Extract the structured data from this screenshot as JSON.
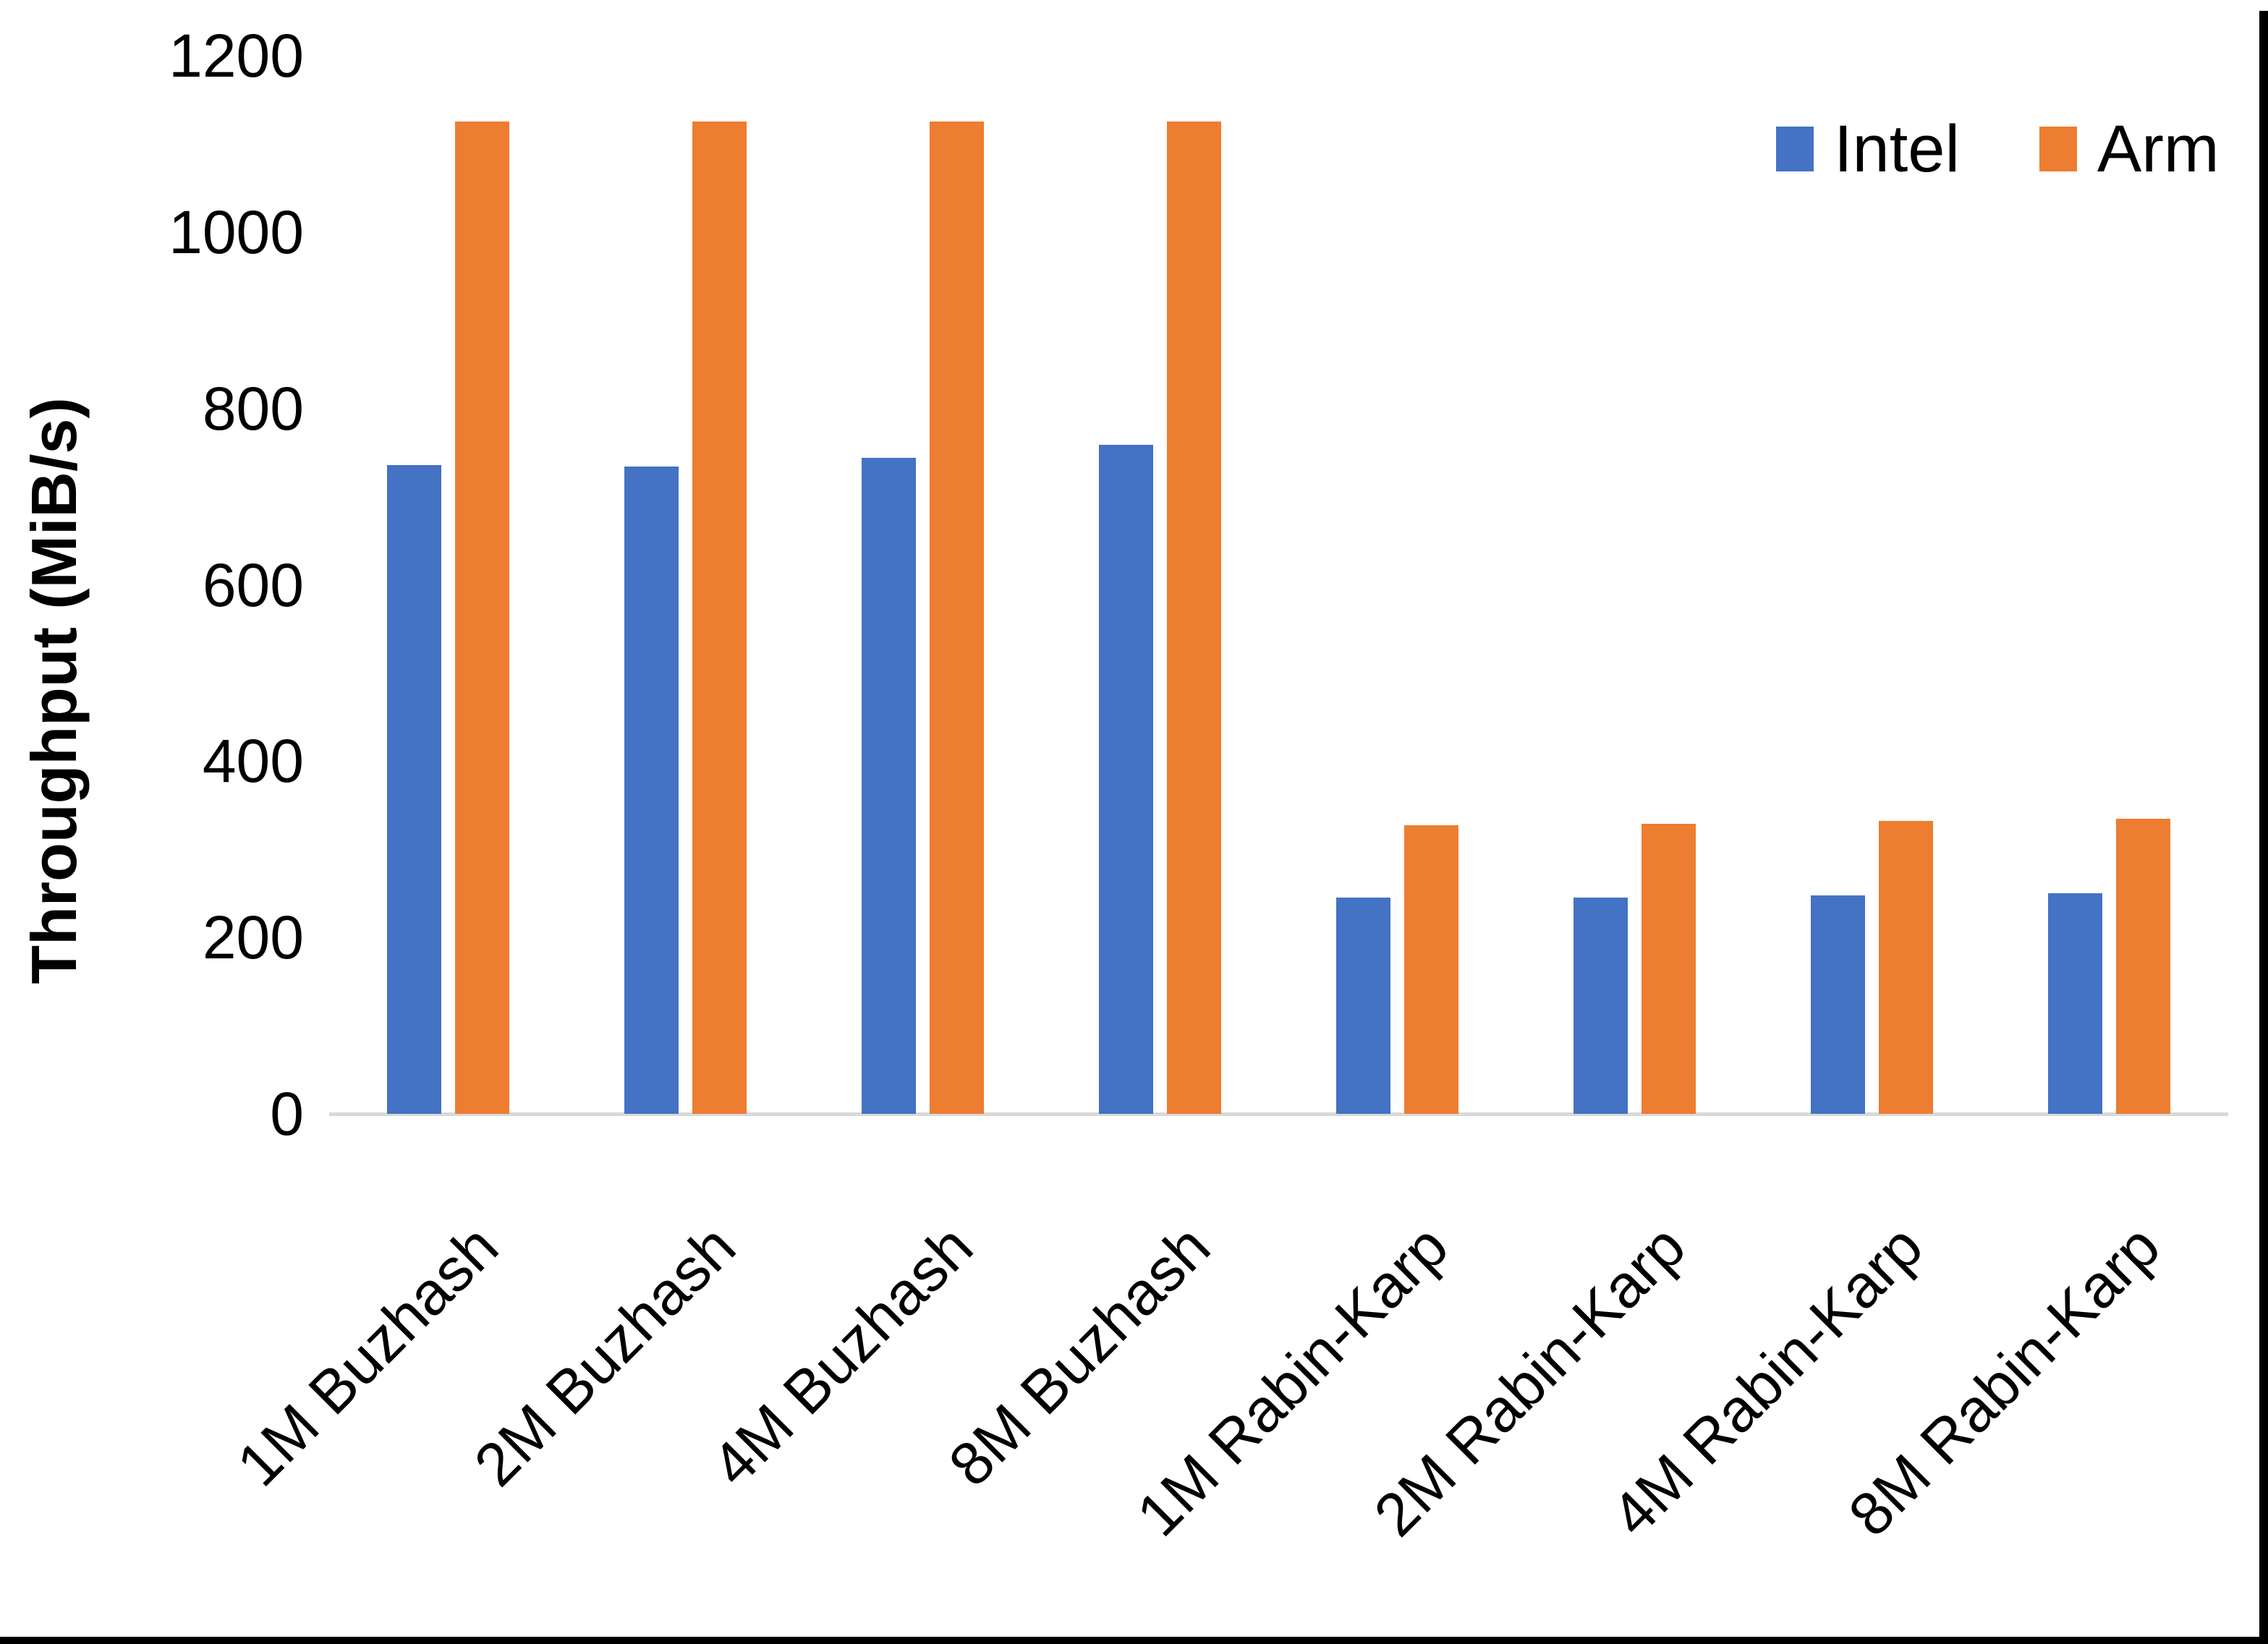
{
  "chart_data": {
    "type": "bar",
    "title": "",
    "xlabel": "",
    "ylabel": "Throughput (MiB/s)",
    "ylim": [
      0,
      1200
    ],
    "yticks": [
      0,
      200,
      400,
      600,
      800,
      1000,
      1200
    ],
    "grid": false,
    "legend_position": "top-right",
    "axis_line_color": "#D9D9D9",
    "text_color": "#000000",
    "background_color": "#FFFFFF",
    "categories": [
      "1M Buzhash",
      "2M Buzhash",
      "4M Buzhash",
      "8M Buzhash",
      "1M Rabin-Karp",
      "2M Rabin-Karp",
      "4M Rabin-Karp",
      "8M Rabin-Karp"
    ],
    "series": [
      {
        "name": "Intel",
        "color": "#4472C4",
        "values": [
          736,
          734,
          744,
          759,
          245,
          245,
          248,
          250
        ]
      },
      {
        "name": "Arm",
        "color": "#ED7D31",
        "values": [
          1125,
          1125,
          1125,
          1125,
          327,
          329,
          332,
          335
        ]
      }
    ]
  }
}
